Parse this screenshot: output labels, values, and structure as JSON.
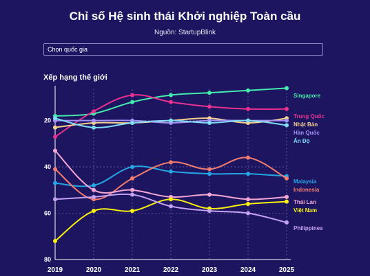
{
  "header": {
    "title": "Chỉ số Hệ sinh thái Khởi nghiệp Toàn cầu",
    "subtitle": "Nguồn: StartupBlink"
  },
  "controls": {
    "country_select_label": "Chọn quốc gia"
  },
  "chart_data": {
    "type": "line",
    "ylabel": "Xếp hạng thế giới",
    "y_reversed": true,
    "ylim": [
      80,
      5
    ],
    "yticks": [
      20,
      40,
      60,
      80
    ],
    "x": [
      "2019",
      "2020",
      "2021",
      "2022",
      "2023",
      "2024",
      "2025"
    ],
    "grid": "vertical-dashed",
    "legend": "labels-at-line-ends-right",
    "series": [
      {
        "name": "Singapore",
        "color": "#43ecac",
        "values": [
          18,
          17,
          12,
          9,
          8,
          7,
          6
        ]
      },
      {
        "name": "Trung Quốc",
        "color": "#e8318f",
        "values": [
          27,
          16,
          9,
          12,
          14,
          15,
          15
        ]
      },
      {
        "name": "Nhật Bản",
        "color": "#f7d290",
        "values": [
          23,
          21,
          21,
          20,
          19,
          21,
          19
        ]
      },
      {
        "name": "Hàn Quốc",
        "color": "#a391f7",
        "values": [
          20,
          20,
          20,
          21,
          20,
          20,
          20
        ]
      },
      {
        "name": "Ấn Độ",
        "color": "#7fdcf5",
        "values": [
          19,
          23,
          21,
          20,
          21,
          20,
          22
        ]
      },
      {
        "name": "Malaysia",
        "color": "#25a6e3",
        "values": [
          47,
          48,
          40,
          42,
          43,
          43,
          44
        ]
      },
      {
        "name": "Indonesia",
        "color": "#f27c6d",
        "values": [
          41,
          54,
          45,
          38,
          41,
          36,
          45
        ]
      },
      {
        "name": "Thái Lan",
        "color": "#f5a8d5",
        "values": [
          33,
          50,
          50,
          53,
          52,
          54,
          53
        ]
      },
      {
        "name": "Việt Nam",
        "color": "#f8f20c",
        "values": [
          72,
          59,
          59,
          54,
          58,
          56,
          55
        ]
      },
      {
        "name": "Philippines",
        "color": "#c6a2f2",
        "values": [
          54,
          53,
          52,
          57,
          59,
          60,
          64
        ]
      }
    ]
  }
}
